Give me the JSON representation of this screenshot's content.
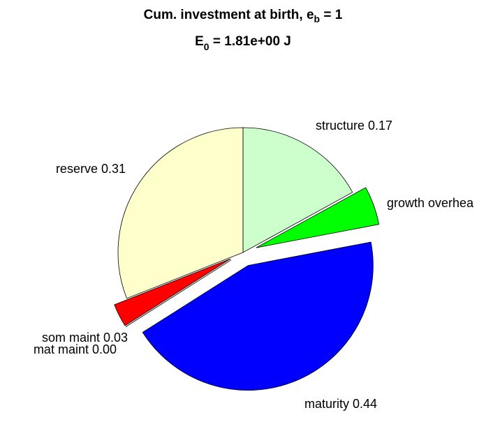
{
  "chart_data": {
    "type": "pie",
    "title": {
      "text": "Cum. investment at birth, e",
      "sub": "b",
      "after": " = 1"
    },
    "subtitle": {
      "text": "E",
      "sub": "0",
      "after": " = 1.81e+00 J"
    },
    "categories": [
      "structure 0.17",
      "growth overhea",
      "maturity 0.44",
      "mat maint 0.00",
      "som maint 0.03",
      "reserve 0.31"
    ],
    "values": [
      0.17,
      0.05,
      0.44,
      0.0,
      0.03,
      0.31
    ],
    "colors": [
      "#ccffcc",
      "#00ff00",
      "#0000ff",
      "#ff00ff",
      "#ff0000",
      "#ffffcc"
    ],
    "explode": [
      false,
      true,
      true,
      true,
      true,
      false
    ],
    "direction": "clockwise"
  }
}
